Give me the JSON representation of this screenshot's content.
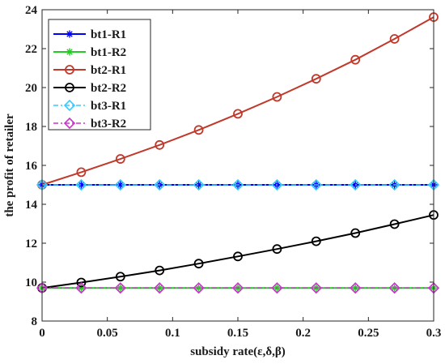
{
  "chart_data": {
    "type": "line",
    "title": "",
    "xlabel": "subsidy rate(ε,δ,β)",
    "ylabel": "the profit of retailer",
    "xlim": [
      0,
      0.3
    ],
    "ylim": [
      8,
      24
    ],
    "xticks": [
      0,
      0.05,
      0.1,
      0.15,
      0.2,
      0.25,
      0.3
    ],
    "xtick_labels": [
      "0",
      "0.05",
      "0.1",
      "0.15",
      "0.2",
      "0.25",
      "0.3"
    ],
    "yticks": [
      8,
      10,
      12,
      14,
      16,
      18,
      20,
      22,
      24
    ],
    "ytick_labels": [
      "8",
      "10",
      "12",
      "14",
      "16",
      "18",
      "20",
      "22",
      "24"
    ],
    "grid": false,
    "legend_position": "top-left",
    "x": [
      0,
      0.03,
      0.06,
      0.09,
      0.12,
      0.15,
      0.18,
      0.21,
      0.24,
      0.27,
      0.3
    ],
    "series": [
      {
        "name": "bt1-R1",
        "color": "#0000ff",
        "line": "solid",
        "marker": "asterisk",
        "values": [
          15.0,
          15.0,
          15.0,
          15.0,
          15.0,
          15.0,
          15.0,
          15.0,
          15.0,
          15.0,
          15.0
        ]
      },
      {
        "name": "bt1-R2",
        "color": "#22cc22",
        "line": "solid",
        "marker": "asterisk",
        "values": [
          9.7,
          9.7,
          9.7,
          9.7,
          9.7,
          9.7,
          9.7,
          9.7,
          9.7,
          9.7,
          9.7
        ]
      },
      {
        "name": "bt2-R1",
        "color": "#c0392b",
        "line": "solid",
        "marker": "circle",
        "values": [
          15.0,
          15.65,
          16.33,
          17.05,
          17.82,
          18.65,
          19.52,
          20.45,
          21.43,
          22.5,
          23.62
        ]
      },
      {
        "name": "bt2-R2",
        "color": "#000000",
        "line": "solid",
        "marker": "circle",
        "values": [
          9.7,
          9.98,
          10.28,
          10.6,
          10.95,
          11.32,
          11.7,
          12.1,
          12.52,
          12.98,
          13.45
        ]
      },
      {
        "name": "bt3-R1",
        "color": "#33ccff",
        "line": "dashdot",
        "marker": "diamond",
        "values": [
          15.0,
          15.0,
          15.0,
          15.0,
          15.0,
          15.0,
          15.0,
          15.0,
          15.0,
          15.0,
          15.0
        ]
      },
      {
        "name": "bt3-R2",
        "color": "#cc33cc",
        "line": "dashdot",
        "marker": "diamond",
        "values": [
          9.7,
          9.7,
          9.7,
          9.7,
          9.7,
          9.7,
          9.7,
          9.7,
          9.7,
          9.7,
          9.7
        ]
      }
    ]
  }
}
